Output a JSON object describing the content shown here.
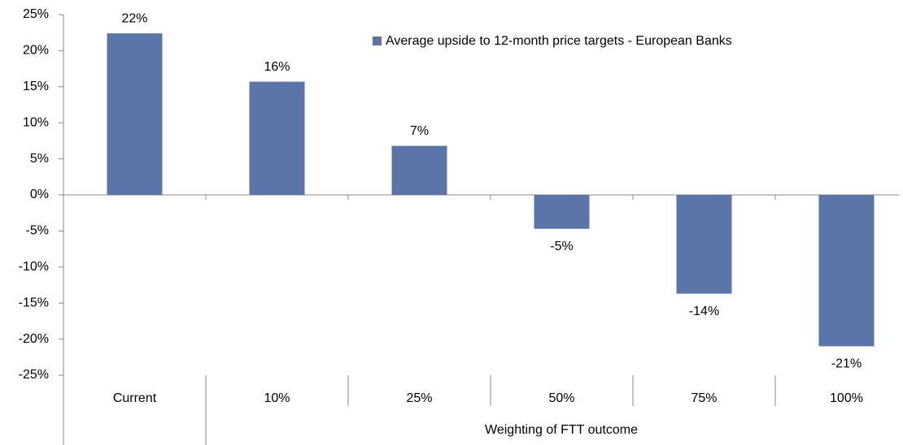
{
  "chart_data": {
    "type": "bar",
    "categories": [
      "Current",
      "10%",
      "25%",
      "50%",
      "75%",
      "100%"
    ],
    "x_group_label": "Weighting of FTT outcome",
    "series": [
      {
        "name": "Average upside to 12-month price targets - European Banks",
        "color": "#5b75a8",
        "values": [
          22.4,
          15.7,
          6.8,
          -4.7,
          -13.7,
          -21.0
        ],
        "value_labels": [
          "22%",
          "16%",
          "7%",
          "-5%",
          "-14%",
          "-21%"
        ]
      }
    ],
    "ylim": [
      -25,
      25
    ],
    "yticks": [
      {
        "value": 25,
        "label": "25%"
      },
      {
        "value": 20,
        "label": "20%"
      },
      {
        "value": 15,
        "label": "15%"
      },
      {
        "value": 10,
        "label": "10%"
      },
      {
        "value": 5,
        "label": "5%"
      },
      {
        "value": 0,
        "label": "0%"
      },
      {
        "value": -5,
        "label": "-5%"
      },
      {
        "value": -10,
        "label": "-10%"
      },
      {
        "value": -15,
        "label": "-15%"
      },
      {
        "value": -20,
        "label": "-20%"
      },
      {
        "value": -25,
        "label": "-25%"
      }
    ],
    "legend": "top-right"
  }
}
